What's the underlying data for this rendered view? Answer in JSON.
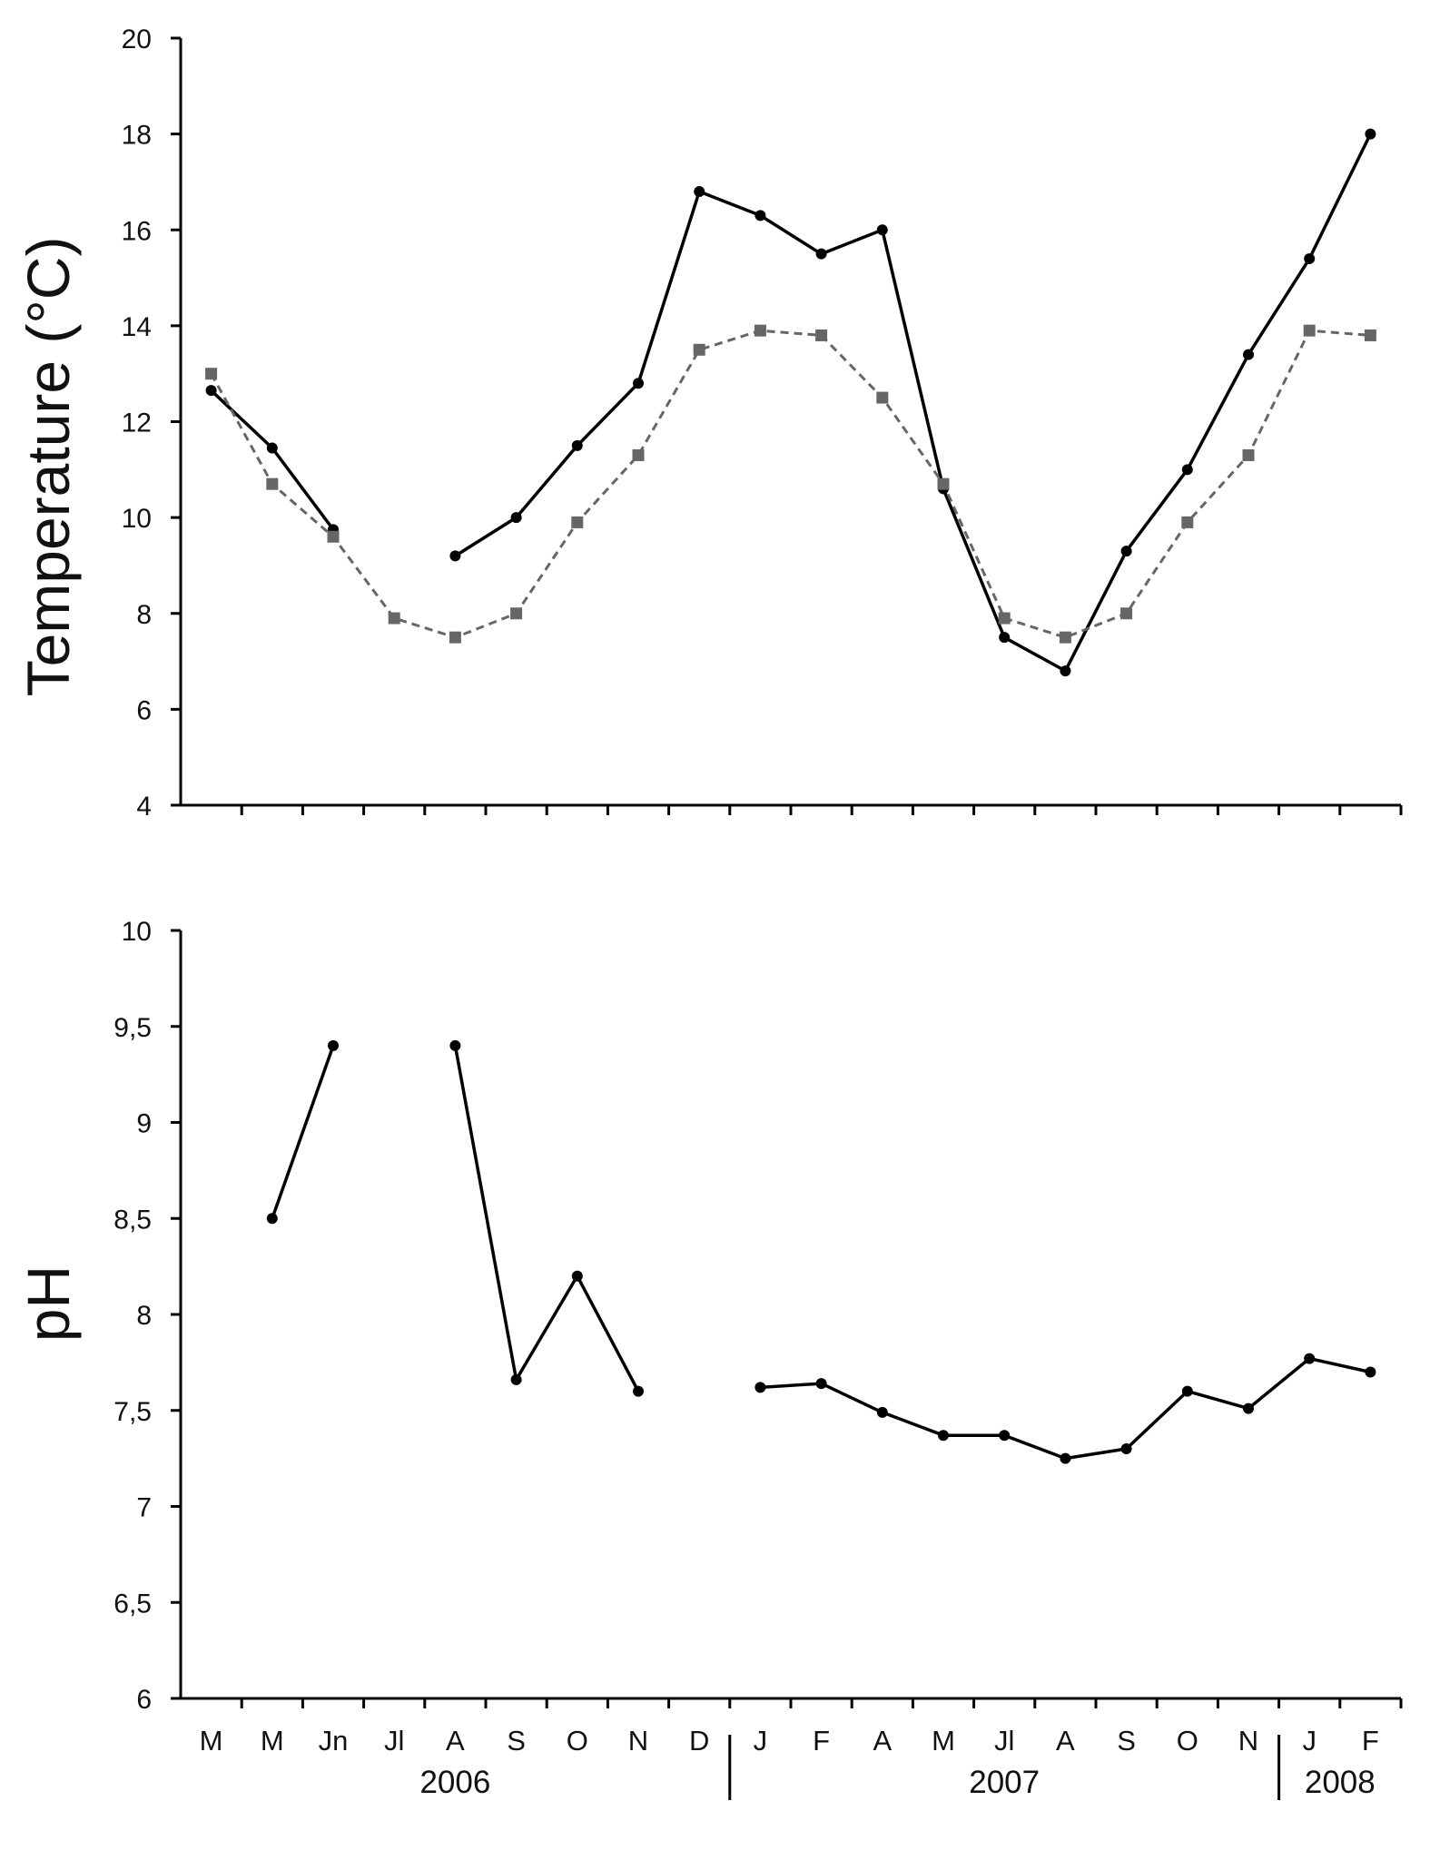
{
  "chart_data": [
    {
      "type": "line",
      "ylabel": "Temperature (°C)",
      "xlabel": "",
      "ylim": [
        4,
        20
      ],
      "yticks": [
        "4",
        "6",
        "8",
        "10",
        "12",
        "14",
        "16",
        "18",
        "20"
      ],
      "grid": false,
      "legend": "none",
      "series": [
        {
          "style": "solid-black-circles",
          "color": "#000000",
          "values": [
            12.65,
            11.45,
            9.75,
            null,
            9.2,
            10.0,
            11.5,
            12.8,
            16.8,
            16.3,
            15.5,
            16.0,
            10.6,
            7.5,
            6.8,
            9.3,
            11.0,
            13.4,
            15.4,
            18.0
          ]
        },
        {
          "style": "dashed-grey-squares",
          "color": "#666666",
          "values": [
            13.0,
            10.7,
            9.6,
            7.9,
            7.5,
            8.0,
            9.9,
            11.3,
            13.5,
            13.9,
            13.8,
            12.5,
            10.7,
            7.9,
            7.5,
            8.0,
            9.9,
            11.3,
            13.9,
            13.8
          ]
        }
      ]
    },
    {
      "type": "line",
      "ylabel": "pH",
      "xlabel": "",
      "ylim": [
        6,
        10
      ],
      "yticks": [
        "6",
        "6,5",
        "7",
        "7,5",
        "8",
        "8,5",
        "9",
        "9,5",
        "10"
      ],
      "grid": false,
      "legend": "none",
      "categories": [
        "M",
        "M",
        "Jn",
        "Jl",
        "A",
        "S",
        "O",
        "N",
        "D",
        "J",
        "F",
        "A",
        "M",
        "Jl",
        "A",
        "S",
        "O",
        "N",
        "J",
        "F"
      ],
      "years": [
        {
          "label": "2006",
          "from": 0,
          "to": 8
        },
        {
          "label": "2007",
          "from": 9,
          "to": 17
        },
        {
          "label": "2008",
          "from": 18,
          "to": 19
        }
      ],
      "series": [
        {
          "style": "solid-black-circles",
          "color": "#000000",
          "values": [
            null,
            8.5,
            9.4,
            null,
            9.4,
            7.66,
            8.2,
            7.6,
            null,
            7.62,
            7.64,
            7.49,
            7.37,
            7.37,
            7.25,
            7.3,
            7.6,
            7.51,
            7.77,
            7.7
          ]
        }
      ]
    }
  ]
}
